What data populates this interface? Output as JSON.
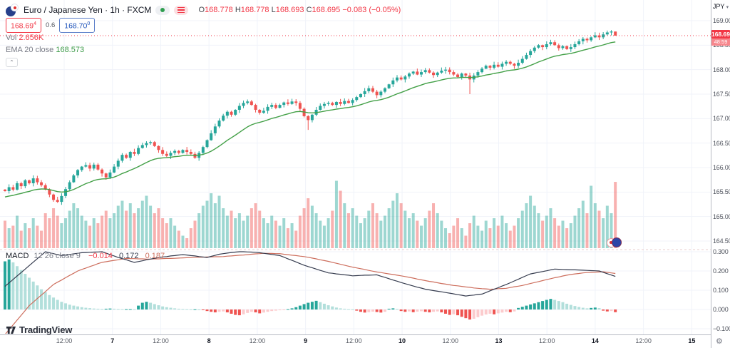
{
  "header": {
    "symbol_title": "Euro / Japanese Yen · 1h · FXCM",
    "ohlc_o_label": "O",
    "ohlc_o": "168.778",
    "ohlc_h_label": "H",
    "ohlc_h": "168.778",
    "ohlc_l_label": "L",
    "ohlc_l": "168.693",
    "ohlc_c_label": "C",
    "ohlc_c": "168.695",
    "ohlc_change": "−0.083 (−0.05%)",
    "sell_main": "168.69",
    "sell_sup": "4",
    "spread": "0.6",
    "buy_main": "168.70",
    "buy_sup": "0",
    "vol_label": "Vol",
    "vol_value": "2.656K",
    "ema_label": "EMA 20 close",
    "ema_value": "168.573"
  },
  "macd_status": {
    "title": "MACD",
    "params": "12 26 close 9",
    "hist_value": "−0.014",
    "macd_value": "0.172",
    "signal_value": "0.187"
  },
  "price_axis": {
    "currency": "JPY",
    "ticks": [
      169.0,
      168.5,
      168.0,
      167.5,
      167.0,
      166.5,
      166.0,
      165.5,
      165.0,
      164.5
    ],
    "macd_ticks": [
      0.3,
      0.2,
      0.1,
      0.0,
      -0.1
    ],
    "last_price": "168.695",
    "countdown": "48:59"
  },
  "time_axis": {
    "labels": [
      {
        "text": "12:00",
        "major": false
      },
      {
        "text": "7",
        "major": true
      },
      {
        "text": "12:00",
        "major": false
      },
      {
        "text": "8",
        "major": true
      },
      {
        "text": "12:00",
        "major": false
      },
      {
        "text": "9",
        "major": true
      },
      {
        "text": "12:00",
        "major": false
      },
      {
        "text": "10",
        "major": true
      },
      {
        "text": "12:00",
        "major": false
      },
      {
        "text": "13",
        "major": true
      },
      {
        "text": "12:00",
        "major": false
      },
      {
        "text": "14",
        "major": true
      },
      {
        "text": "12:00",
        "major": false
      },
      {
        "text": "15",
        "major": true
      }
    ]
  },
  "branding": {
    "logo_text": "TradingView"
  },
  "colors": {
    "up": "#26a69a",
    "down": "#ef5350",
    "vol_up": "rgba(38,166,154,0.45)",
    "vol_down": "rgba(239,83,80,0.45)",
    "ema": "#43a047",
    "macd_line": "#363c4f",
    "signal_line": "#cd6e5d",
    "hist_up": "#26a69a",
    "hist_up_fall": "#b2dfdb",
    "hist_down": "#ef5350",
    "hist_down_rise": "#fccbcd",
    "grid": "#f0f3fa",
    "divider": "#e8ccce",
    "accent_red": "#f23645",
    "accent_blue": "#2962ff"
  },
  "chart_data": {
    "type": "candlestick",
    "symbol": "EUR/JPY",
    "timeframe": "1h",
    "price_axis_range": [
      164.3,
      169.1
    ],
    "macd_axis_range": [
      -0.13,
      0.33
    ],
    "ema_period": 20,
    "last_candle": {
      "open": 168.778,
      "high": 168.778,
      "low": 168.693,
      "close": 168.695
    },
    "special_lows": {
      "75": 166.77,
      "115": 167.5
    },
    "closes": [
      165.52,
      165.6,
      165.55,
      165.68,
      165.62,
      165.74,
      165.68,
      165.78,
      165.7,
      165.64,
      165.55,
      165.45,
      165.34,
      165.3,
      165.42,
      165.56,
      165.7,
      165.84,
      165.95,
      166.02,
      166.05,
      165.98,
      166.06,
      165.96,
      165.88,
      165.8,
      165.9,
      166.02,
      166.14,
      166.26,
      166.2,
      166.32,
      166.28,
      166.4,
      166.46,
      166.5,
      166.52,
      166.44,
      166.36,
      166.28,
      166.24,
      166.3,
      166.34,
      166.3,
      166.36,
      166.32,
      166.28,
      166.2,
      166.3,
      166.42,
      166.56,
      166.7,
      166.84,
      166.96,
      167.06,
      167.14,
      167.08,
      167.18,
      167.26,
      167.32,
      167.35,
      167.28,
      167.18,
      167.12,
      167.16,
      167.24,
      167.28,
      167.22,
      167.28,
      167.33,
      167.3,
      167.35,
      167.32,
      167.2,
      167.05,
      166.97,
      167.08,
      167.18,
      167.26,
      167.3,
      167.32,
      167.28,
      167.34,
      167.3,
      167.36,
      167.32,
      167.38,
      167.44,
      167.5,
      167.56,
      167.62,
      167.55,
      167.48,
      167.55,
      167.62,
      167.7,
      167.78,
      167.84,
      167.8,
      167.86,
      167.92,
      167.96,
      167.9,
      167.95,
      167.99,
      167.94,
      167.89,
      167.94,
      167.98,
      168.0,
      167.95,
      167.9,
      167.85,
      167.92,
      167.88,
      167.8,
      167.88,
      167.95,
      168.02,
      168.08,
      168.04,
      168.1,
      168.06,
      168.12,
      168.16,
      168.12,
      168.08,
      168.14,
      168.22,
      168.3,
      168.38,
      168.45,
      168.5,
      168.46,
      168.52,
      168.56,
      168.5,
      168.44,
      168.48,
      168.42,
      168.46,
      168.52,
      168.58,
      168.63,
      168.6,
      168.66,
      168.7,
      168.66,
      168.72,
      168.76,
      168.778,
      168.695
    ],
    "volume_k": [
      1.1,
      0.8,
      0.9,
      1.3,
      0.7,
      1.0,
      0.8,
      1.2,
      0.9,
      0.7,
      1.4,
      1.2,
      1.6,
      1.3,
      1.0,
      1.2,
      1.5,
      1.8,
      1.6,
      1.3,
      1.1,
      0.9,
      1.2,
      1.0,
      1.3,
      1.5,
      1.2,
      1.4,
      1.7,
      1.9,
      1.5,
      1.8,
      1.4,
      1.6,
      1.9,
      2.1,
      1.7,
      1.4,
      1.6,
      1.2,
      1.0,
      1.2,
      0.9,
      0.7,
      0.5,
      0.4,
      0.8,
      1.1,
      1.4,
      1.7,
      1.9,
      2.2,
      1.8,
      2.1,
      1.6,
      1.3,
      1.5,
      1.2,
      1.4,
      1.1,
      1.3,
      1.6,
      1.8,
      1.5,
      1.2,
      1.0,
      1.3,
      1.1,
      0.9,
      1.2,
      0.8,
      1.0,
      0.7,
      1.3,
      1.6,
      2.0,
      1.7,
      1.4,
      1.1,
      0.9,
      1.2,
      1.5,
      2.7,
      2.3,
      1.8,
      1.4,
      1.6,
      1.3,
      1.0,
      1.2,
      1.5,
      1.8,
      1.4,
      1.1,
      1.3,
      1.6,
      1.9,
      2.2,
      1.8,
      1.5,
      1.2,
      1.4,
      1.1,
      0.9,
      1.2,
      1.5,
      1.8,
      1.4,
      1.1,
      0.8,
      0.6,
      0.9,
      1.2,
      0.8,
      0.5,
      1.0,
      1.3,
      0.9,
      0.7,
      1.1,
      0.8,
      1.2,
      0.9,
      1.3,
      1.0,
      0.7,
      0.9,
      1.2,
      1.5,
      1.8,
      2.1,
      1.7,
      1.4,
      1.1,
      1.3,
      1.6,
      1.2,
      0.9,
      1.1,
      0.8,
      1.0,
      1.3,
      1.6,
      1.9,
      1.4,
      2.5,
      1.8,
      1.5,
      1.2,
      1.7,
      1.4,
      2.656
    ],
    "macd": {
      "macd_line": [
        0.12,
        0.138,
        0.156,
        0.174,
        0.192,
        0.21,
        0.228,
        0.246,
        0.264,
        0.282,
        0.3,
        0.295,
        0.29,
        0.285,
        0.28,
        0.283,
        0.286,
        0.289,
        0.292,
        0.295,
        0.296,
        0.297,
        0.298,
        0.299,
        0.3,
        0.293,
        0.285,
        0.278,
        0.27,
        0.264,
        0.258,
        0.251,
        0.245,
        0.249,
        0.253,
        0.258,
        0.262,
        0.266,
        0.27,
        0.273,
        0.275,
        0.278,
        0.28,
        0.283,
        0.285,
        0.283,
        0.28,
        0.278,
        0.275,
        0.273,
        0.27,
        0.276,
        0.281,
        0.287,
        0.29,
        0.293,
        0.296,
        0.298,
        0.3,
        0.3,
        0.299,
        0.298,
        0.297,
        0.295,
        0.292,
        0.289,
        0.286,
        0.283,
        0.28,
        0.272,
        0.263,
        0.255,
        0.247,
        0.238,
        0.23,
        0.223,
        0.217,
        0.21,
        0.203,
        0.197,
        0.19,
        0.188,
        0.185,
        0.183,
        0.18,
        0.178,
        0.175,
        0.176,
        0.177,
        0.178,
        0.178,
        0.179,
        0.18,
        0.173,
        0.167,
        0.16,
        0.153,
        0.147,
        0.14,
        0.134,
        0.128,
        0.122,
        0.116,
        0.111,
        0.105,
        0.102,
        0.098,
        0.095,
        0.092,
        0.088,
        0.085,
        0.081,
        0.077,
        0.074,
        0.07,
        0.073,
        0.075,
        0.078,
        0.08,
        0.088,
        0.097,
        0.105,
        0.113,
        0.122,
        0.13,
        0.139,
        0.148,
        0.157,
        0.167,
        0.176,
        0.185,
        0.189,
        0.193,
        0.197,
        0.201,
        0.206,
        0.21,
        0.209,
        0.208,
        0.207,
        0.206,
        0.206,
        0.205,
        0.204,
        0.203,
        0.202,
        0.201,
        0.2,
        0.193,
        0.186,
        0.179,
        0.172
      ],
      "signal_line": [
        -0.13,
        -0.105,
        -0.08,
        -0.055,
        -0.03,
        -0.005,
        0.02,
        0.038,
        0.057,
        0.075,
        0.093,
        0.112,
        0.13,
        0.142,
        0.153,
        0.165,
        0.177,
        0.188,
        0.2,
        0.208,
        0.215,
        0.223,
        0.23,
        0.238,
        0.245,
        0.248,
        0.252,
        0.255,
        0.258,
        0.262,
        0.265,
        0.264,
        0.264,
        0.263,
        0.263,
        0.262,
        0.262,
        0.263,
        0.263,
        0.264,
        0.265,
        0.265,
        0.266,
        0.267,
        0.268,
        0.269,
        0.27,
        0.271,
        0.272,
        0.272,
        0.273,
        0.273,
        0.274,
        0.274,
        0.275,
        0.277,
        0.278,
        0.28,
        0.282,
        0.283,
        0.285,
        0.287,
        0.289,
        0.29,
        0.292,
        0.291,
        0.291,
        0.29,
        0.29,
        0.287,
        0.285,
        0.282,
        0.28,
        0.277,
        0.275,
        0.271,
        0.267,
        0.263,
        0.258,
        0.254,
        0.25,
        0.245,
        0.24,
        0.235,
        0.23,
        0.225,
        0.22,
        0.216,
        0.212,
        0.208,
        0.203,
        0.199,
        0.195,
        0.192,
        0.188,
        0.185,
        0.182,
        0.178,
        0.175,
        0.171,
        0.167,
        0.163,
        0.158,
        0.154,
        0.15,
        0.146,
        0.143,
        0.139,
        0.135,
        0.132,
        0.128,
        0.125,
        0.123,
        0.12,
        0.117,
        0.115,
        0.112,
        0.11,
        0.108,
        0.107,
        0.105,
        0.106,
        0.108,
        0.109,
        0.11,
        0.114,
        0.118,
        0.121,
        0.125,
        0.13,
        0.135,
        0.14,
        0.145,
        0.15,
        0.155,
        0.16,
        0.165,
        0.169,
        0.174,
        0.178,
        0.182,
        0.185,
        0.187,
        0.19,
        0.192,
        0.193,
        0.194,
        0.195,
        0.196,
        0.193,
        0.19,
        0.187
      ],
      "histogram": [
        0.25,
        0.26,
        0.245,
        0.225,
        0.205,
        0.185,
        0.165,
        0.145,
        0.125,
        0.105,
        0.09,
        0.075,
        0.062,
        0.05,
        0.04,
        0.032,
        0.025,
        0.02,
        0.016,
        0.012,
        0.009,
        0.007,
        0.005,
        0.004,
        0.003,
        0.004,
        0.005,
        0.004,
        0.003,
        0.002,
        0.002,
        0.002,
        0.001,
        0.02,
        0.035,
        0.04,
        0.035,
        0.028,
        0.022,
        0.016,
        0.012,
        0.009,
        0.006,
        0.004,
        0.003,
        0.002,
        0.001,
        0.001,
        0.0,
        -0.002,
        -0.008,
        -0.012,
        -0.015,
        -0.012,
        -0.01,
        -0.015,
        -0.022,
        -0.028,
        -0.03,
        -0.025,
        -0.018,
        -0.012,
        -0.015,
        -0.02,
        -0.016,
        -0.012,
        -0.008,
        -0.006,
        -0.004,
        -0.003,
        0.002,
        0.006,
        0.012,
        0.02,
        0.028,
        0.035,
        0.04,
        0.045,
        0.038,
        0.03,
        0.022,
        0.016,
        0.01,
        0.006,
        0.004,
        0.002,
        0.001,
        -0.006,
        -0.012,
        -0.016,
        -0.014,
        -0.011,
        -0.013,
        -0.016,
        -0.012,
        0.004,
        0.006,
        0.003,
        -0.008,
        -0.012,
        -0.01,
        -0.014,
        -0.011,
        -0.009,
        -0.012,
        -0.015,
        -0.012,
        -0.01,
        -0.015,
        -0.022,
        -0.028,
        -0.025,
        -0.03,
        -0.038,
        -0.045,
        -0.052,
        -0.048,
        -0.04,
        -0.032,
        -0.026,
        -0.022,
        -0.025,
        -0.02,
        -0.016,
        -0.012,
        -0.014,
        -0.01,
        0.008,
        0.014,
        0.02,
        0.026,
        0.032,
        0.038,
        0.044,
        0.05,
        0.055,
        0.05,
        0.044,
        0.038,
        0.03,
        0.024,
        0.018,
        0.013,
        0.009,
        0.006,
        0.008,
        0.01,
        0.007,
        -0.006,
        -0.01,
        -0.008,
        -0.014
      ]
    }
  }
}
